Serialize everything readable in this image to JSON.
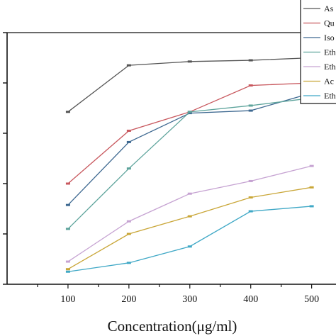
{
  "chart_data": {
    "type": "line",
    "xlabel": "Concentration(μg/ml)",
    "ylabel": "",
    "title": "",
    "x": [
      100,
      200,
      300,
      400,
      500
    ],
    "xlim": [
      0,
      540
    ],
    "ylim": [
      0,
      100
    ],
    "ytick_count": 6,
    "grid": false,
    "legend_position": "top-right",
    "series": [
      {
        "name": "As",
        "color": "#555555",
        "values": [
          68.5,
          87,
          88.5,
          89,
          90
        ]
      },
      {
        "name": "Qu",
        "color": "#c8585e",
        "values": [
          40,
          61,
          68.5,
          79,
          80
        ]
      },
      {
        "name": "Iso",
        "color": "#3d6890",
        "values": [
          31.5,
          56.5,
          68,
          69,
          76
        ]
      },
      {
        "name": "Eth",
        "color": "#5ea49c",
        "values": [
          22,
          46,
          68.5,
          71,
          74
        ]
      },
      {
        "name": "Eth",
        "color": "#c6a3d2",
        "values": [
          9,
          25,
          36,
          41,
          47
        ]
      },
      {
        "name": "Ac",
        "color": "#c9a637",
        "values": [
          6,
          20,
          27,
          34.5,
          38.5
        ]
      },
      {
        "name": "Eth",
        "color": "#3fa8c6",
        "values": [
          5,
          8.5,
          15,
          29,
          31
        ]
      }
    ]
  }
}
